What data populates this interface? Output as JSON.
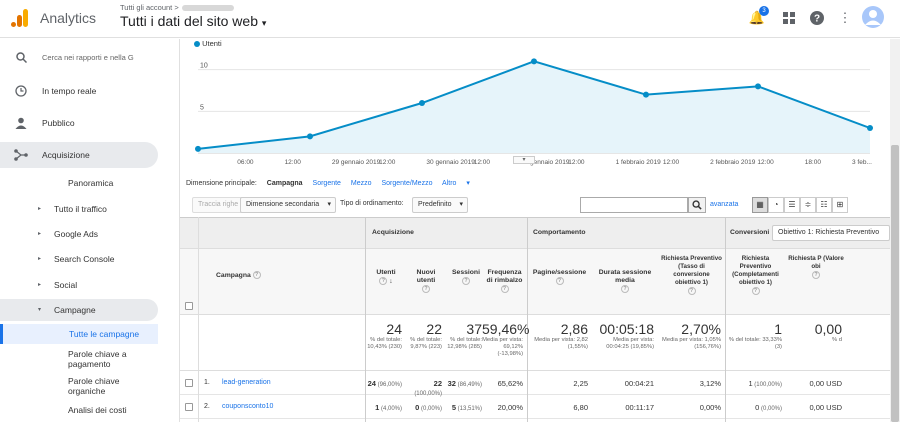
{
  "app": {
    "name": "Analytics"
  },
  "header": {
    "breadcrumb": "Tutti gli account",
    "property": "Tutti i dati del sito web",
    "notification_count": "3"
  },
  "sidebar": {
    "search_placeholder": "Cerca nei rapporti e nella G",
    "items": [
      {
        "label": "In tempo reale"
      },
      {
        "label": "Pubblico"
      },
      {
        "label": "Acquisizione"
      }
    ],
    "acquisizione": {
      "overview": "Panoramica",
      "subitems": [
        "Tutto il traffico",
        "Google Ads",
        "Search Console",
        "Social",
        "Campagne"
      ],
      "campagne_children": [
        "Tutte le campagne",
        "Parole chiave a pagamento",
        "Parole chiave organiche",
        "Analisi dei costi"
      ]
    }
  },
  "chart_data": {
    "type": "line",
    "legend": "Utenti",
    "x": [
      "",
      "06:00",
      "12:00",
      "29 gennaio 2019",
      "12:00",
      "30 gennaio 2019",
      "12:00",
      "31 gennaio 2019",
      "12:00",
      "1 febbraio 2019",
      "12:00",
      "2 febbraio 2019",
      "12:00",
      "18:00",
      "3 feb..."
    ],
    "points": [
      {
        "x": 0,
        "y": 0.5
      },
      {
        "x": 1,
        "y": 2
      },
      {
        "x": 2,
        "y": 6
      },
      {
        "x": 3,
        "y": 11
      },
      {
        "x": 4,
        "y": 7
      },
      {
        "x": 5,
        "y": 8
      },
      {
        "x": 6,
        "y": 3
      }
    ],
    "yticks": [
      "10",
      "5"
    ],
    "ylim": [
      0,
      12
    ],
    "color": "#058dc7"
  },
  "dims": {
    "label": "Dimensione principale:",
    "options": [
      "Campagna",
      "Sorgente",
      "Mezzo",
      "Sorgente/Mezzo",
      "Altro"
    ]
  },
  "toolbar": {
    "plot_rows": "Traccia righe",
    "secondary_dim": "Dimensione secondaria",
    "sort_label": "Tipo di ordinamento:",
    "sort_value": "Predefinito",
    "advanced": "avanzata"
  },
  "table": {
    "groups": [
      "Acquisizione",
      "Comportamento",
      "Conversioni"
    ],
    "goal_select": "Obiettivo 1: Richiesta Preventivo",
    "dim_header": "Campagna",
    "columns": [
      "Utenti",
      "Nuovi utenti",
      "Sessioni",
      "Frequenza di rimbalzo",
      "Pagine/sessione",
      "Durata sessione media",
      "Richiesta Preventivo (Tasso di conversione obiettivo 1)",
      "Richiesta Preventivo (Completamenti obiettivo 1)",
      "Richiesta P (Valore obi"
    ],
    "totals": [
      {
        "big": "24",
        "sub": "% del totale: 10,43% (230)"
      },
      {
        "big": "22",
        "sub": "% del totale: 9,87% (223)"
      },
      {
        "big": "37",
        "sub": "% del totale: 12,98% (285)"
      },
      {
        "big": "59,46%",
        "sub": "Media per vista: 69,12% (-13,98%)"
      },
      {
        "big": "2,86",
        "sub": "Media per vista: 2,82 (1,55%)"
      },
      {
        "big": "00:05:18",
        "sub": "Media per vista: 00:04:25 (19,85%)"
      },
      {
        "big": "2,70%",
        "sub": "Media per vista: 1,05% (156,76%)"
      },
      {
        "big": "1",
        "sub": "% del totale: 33,33% (3)"
      },
      {
        "big": "0,00",
        "sub": "% d"
      }
    ],
    "rows": [
      {
        "idx": "1.",
        "name": "lead-generation",
        "cells": [
          [
            "24",
            "(96,00%)"
          ],
          [
            "22",
            "(100,00%)"
          ],
          [
            "32",
            "(86,49%)"
          ],
          [
            "65,62%",
            ""
          ],
          [
            "2,25",
            ""
          ],
          [
            "00:04:21",
            ""
          ],
          [
            "3,12%",
            ""
          ],
          [
            "1",
            "(100,00%)"
          ],
          [
            "0,00 USD",
            ""
          ]
        ]
      },
      {
        "idx": "2.",
        "name": "couponsconto10",
        "cells": [
          [
            "1",
            "(4,00%)"
          ],
          [
            "0",
            "(0,00%)"
          ],
          [
            "5",
            "(13,51%)"
          ],
          [
            "20,00%",
            ""
          ],
          [
            "6,80",
            ""
          ],
          [
            "00:11:17",
            ""
          ],
          [
            "0,00%",
            ""
          ],
          [
            "0",
            "(0,00%)"
          ],
          [
            "0,00 USD",
            ""
          ]
        ]
      }
    ]
  }
}
